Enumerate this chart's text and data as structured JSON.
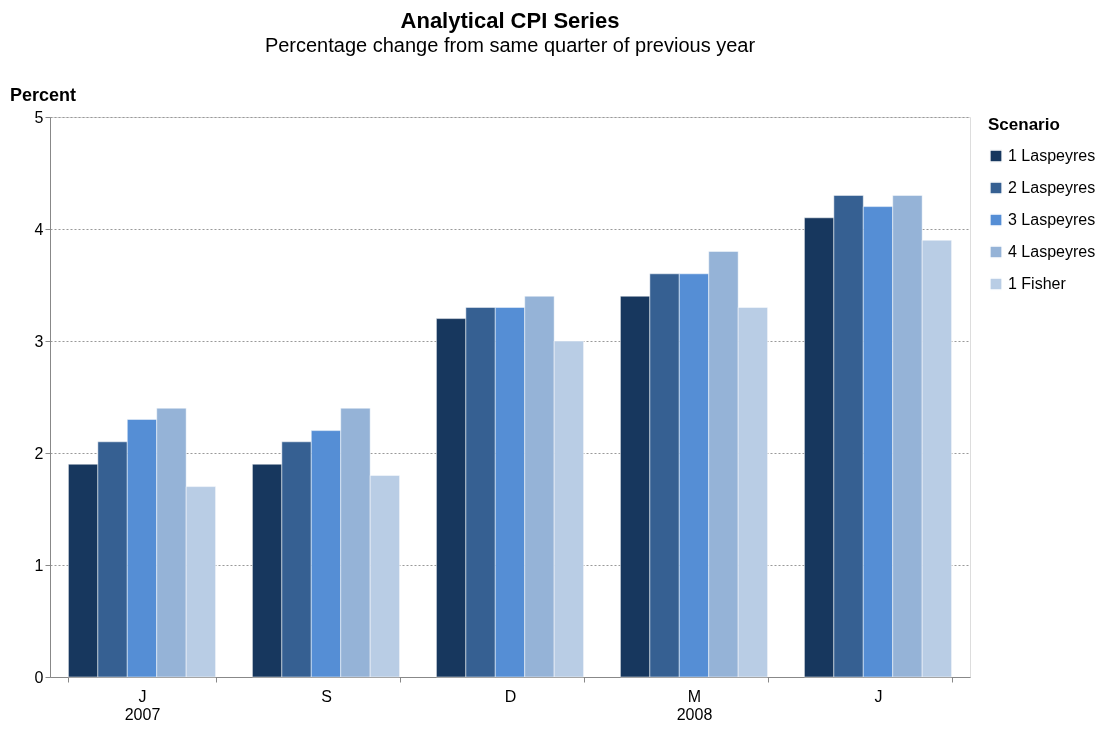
{
  "chart_data": {
    "type": "bar",
    "title": "Analytical CPI Series",
    "subtitle": "Percentage change from same quarter of previous year",
    "ylabel": "Percent",
    "legend_title": "Scenario",
    "categories": [
      "J\n2007",
      "S",
      "D",
      "M\n2008",
      "J"
    ],
    "series": [
      {
        "name": "1 Laspeyres",
        "color": "#17375e",
        "values": [
          1.9,
          1.9,
          3.2,
          3.4,
          4.1
        ]
      },
      {
        "name": "2 Laspeyres",
        "color": "#366092",
        "values": [
          2.1,
          2.1,
          3.3,
          3.6,
          4.3
        ]
      },
      {
        "name": "3 Laspeyres",
        "color": "#558ed5",
        "values": [
          2.3,
          2.2,
          3.3,
          3.6,
          4.2
        ]
      },
      {
        "name": "4 Laspeyres",
        "color": "#95b3d7",
        "values": [
          2.4,
          2.4,
          3.4,
          3.8,
          4.3
        ]
      },
      {
        "name": "1 Fisher",
        "color": "#b9cde5",
        "values": [
          1.7,
          1.8,
          3.0,
          3.3,
          3.9
        ]
      }
    ],
    "ylim": [
      0,
      5
    ],
    "yticks": [
      0,
      1,
      2,
      3,
      4,
      5
    ],
    "grid": "y",
    "legend": "right"
  }
}
